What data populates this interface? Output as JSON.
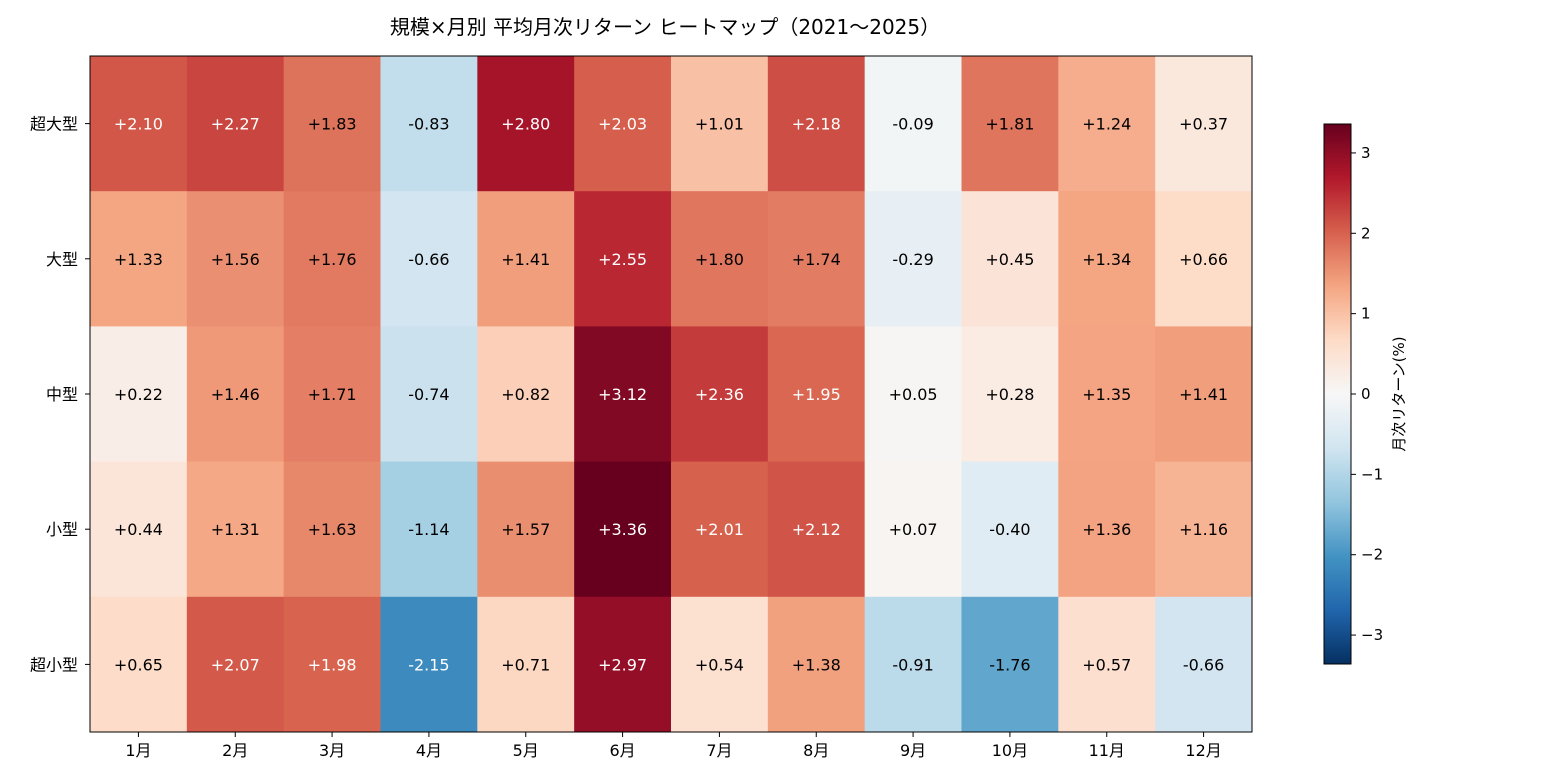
{
  "chart_data": {
    "type": "heatmap",
    "title": "規模×月別 平均月次リターン ヒートマップ（2021〜2025）",
    "x_categories": [
      "1月",
      "2月",
      "3月",
      "4月",
      "5月",
      "6月",
      "7月",
      "8月",
      "9月",
      "10月",
      "11月",
      "12月"
    ],
    "y_categories": [
      "超大型",
      "大型",
      "中型",
      "小型",
      "超小型"
    ],
    "values": [
      [
        2.1,
        2.27,
        1.83,
        -0.83,
        2.8,
        2.03,
        1.01,
        2.18,
        -0.09,
        1.81,
        1.24,
        0.37
      ],
      [
        1.33,
        1.56,
        1.76,
        -0.66,
        1.41,
        2.55,
        1.8,
        1.74,
        -0.29,
        0.45,
        1.34,
        0.66
      ],
      [
        0.22,
        1.46,
        1.71,
        -0.74,
        0.82,
        3.12,
        2.36,
        1.95,
        0.05,
        0.28,
        1.35,
        1.41
      ],
      [
        0.44,
        1.31,
        1.63,
        -1.14,
        1.57,
        3.36,
        2.01,
        2.12,
        0.07,
        -0.4,
        1.36,
        1.16
      ],
      [
        0.65,
        2.07,
        1.98,
        -2.15,
        0.71,
        2.97,
        0.54,
        1.38,
        -0.91,
        -1.76,
        0.57,
        -0.66
      ]
    ],
    "value_labels": [
      [
        "+2.10",
        "+2.27",
        "+1.83",
        "-0.83",
        "+2.80",
        "+2.03",
        "+1.01",
        "+2.18",
        "-0.09",
        "+1.81",
        "+1.24",
        "+0.37"
      ],
      [
        "+1.33",
        "+1.56",
        "+1.76",
        "-0.66",
        "+1.41",
        "+2.55",
        "+1.80",
        "+1.74",
        "-0.29",
        "+0.45",
        "+1.34",
        "+0.66"
      ],
      [
        "+0.22",
        "+1.46",
        "+1.71",
        "-0.74",
        "+0.82",
        "+3.12",
        "+2.36",
        "+1.95",
        "+0.05",
        "+0.28",
        "+1.35",
        "+1.41"
      ],
      [
        "+0.44",
        "+1.31",
        "+1.63",
        "-1.14",
        "+1.57",
        "+3.36",
        "+2.01",
        "+2.12",
        "+0.07",
        "-0.40",
        "+1.36",
        "+1.16"
      ],
      [
        "+0.65",
        "+2.07",
        "+1.98",
        "-2.15",
        "+0.71",
        "+2.97",
        "+0.54",
        "+1.38",
        "-0.91",
        "-1.76",
        "+0.57",
        "-0.66"
      ]
    ],
    "colormap": "RdBu_r",
    "vmin": -3.36,
    "vmax": 3.36,
    "colorbar": {
      "label": "月次リターン(%)",
      "ticks": [
        -3,
        -2,
        -1,
        0,
        1,
        2,
        3
      ],
      "tick_labels": [
        "−3",
        "−2",
        "−1",
        "0",
        "1",
        "2",
        "3"
      ]
    },
    "grid": false
  }
}
